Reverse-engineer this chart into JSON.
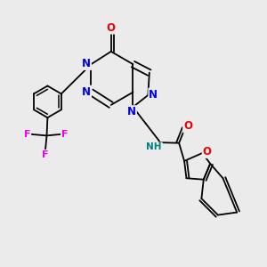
{
  "bg_color": "#ebebeb",
  "bond_color": "#000000",
  "bond_width": 1.3,
  "dbo": 0.012,
  "atom_colors": {
    "N": "#0000ee",
    "O": "#ee0000",
    "F": "#ee00ee",
    "NH": "#008080",
    "C": "#000000"
  },
  "fs": 8.5,
  "fig_w": 3.0,
  "fig_h": 3.0,
  "dpi": 100
}
